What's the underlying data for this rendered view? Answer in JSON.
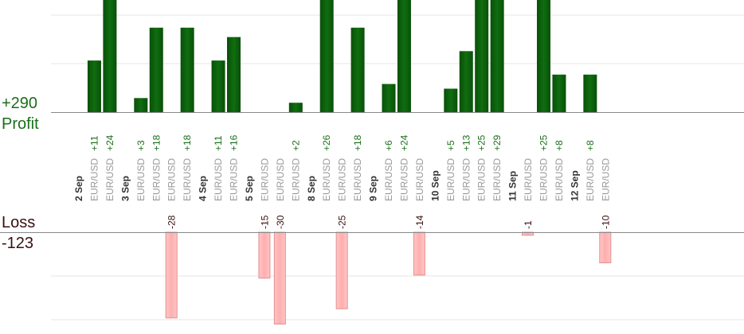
{
  "summary": {
    "profit_total": "+290",
    "profit_label": "Profit",
    "loss_label": "Loss",
    "loss_total": "-123"
  },
  "colors": {
    "profit_bar": "#0b5e0b",
    "profit_text": "#1a6e1a",
    "loss_bar": "#ffb3b3",
    "loss_bar_border": "#e38f8f",
    "loss_text": "#3a1010",
    "axis": "#888888",
    "grid": "#e6e6e6",
    "pair_text": "#999999",
    "date_text": "#333333"
  },
  "chart_data": {
    "type": "bar",
    "profit_axis_max": 24,
    "loss_axis_max": 30,
    "grid": true,
    "groups": [
      {
        "date": "2 Sep",
        "trades": [
          {
            "pair": "EUR/USD",
            "value": 11
          },
          {
            "pair": "EUR/USD",
            "value": 24
          }
        ]
      },
      {
        "date": "3 Sep",
        "trades": [
          {
            "pair": "EUR/USD",
            "value": 3
          },
          {
            "pair": "EUR/USD",
            "value": 18
          },
          {
            "pair": "EUR/USD",
            "value": -28
          },
          {
            "pair": "EUR/USD",
            "value": 18
          }
        ]
      },
      {
        "date": "4 Sep",
        "trades": [
          {
            "pair": "EUR/USD",
            "value": 11
          },
          {
            "pair": "EUR/USD",
            "value": 16
          }
        ]
      },
      {
        "date": "5 Sep",
        "trades": [
          {
            "pair": "EUR/USD",
            "value": -15
          },
          {
            "pair": "EUR/USD",
            "value": -30
          },
          {
            "pair": "EUR/USD",
            "value": 2
          }
        ]
      },
      {
        "date": "8 Sep",
        "trades": [
          {
            "pair": "EUR/USD",
            "value": 26
          },
          {
            "pair": "EUR/USD",
            "value": -25
          },
          {
            "pair": "EUR/USD",
            "value": 18
          }
        ]
      },
      {
        "date": "9 Sep",
        "trades": [
          {
            "pair": "EUR/USD",
            "value": 6
          },
          {
            "pair": "EUR/USD",
            "value": 24
          },
          {
            "pair": "EUR/USD",
            "value": -14
          }
        ]
      },
      {
        "date": "10 Sep",
        "trades": [
          {
            "pair": "EUR/USD",
            "value": 5
          },
          {
            "pair": "EUR/USD",
            "value": 13
          },
          {
            "pair": "EUR/USD",
            "value": 25
          },
          {
            "pair": "EUR/USD",
            "value": 29
          }
        ]
      },
      {
        "date": "11 Sep",
        "trades": [
          {
            "pair": "EUR/USD",
            "value": -1
          },
          {
            "pair": "EUR/USD",
            "value": 25
          },
          {
            "pair": "EUR/USD",
            "value": 8
          }
        ]
      },
      {
        "date": "12 Sep",
        "trades": [
          {
            "pair": "EUR/USD",
            "value": 8
          },
          {
            "pair": "EUR/USD",
            "value": -10
          }
        ]
      }
    ]
  }
}
